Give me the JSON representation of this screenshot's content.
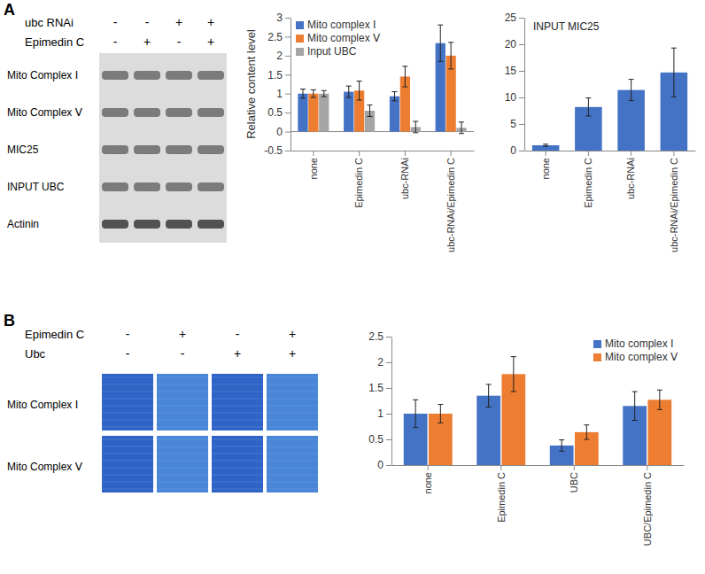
{
  "chart_data": [
    {
      "type": "bar",
      "y_label": "Relative content level",
      "categories": [
        "none",
        "Epimedin C",
        "ubc-RNAi",
        "ubc-RNAi/Epimedin C"
      ],
      "series": [
        {
          "name": "Mito complex Ⅰ",
          "color": "#4472c4",
          "values": [
            1,
            1.05,
            0.93,
            2.33
          ],
          "errors": [
            0.12,
            0.15,
            0.12,
            0.48
          ]
        },
        {
          "name": "Mito complex Ⅴ",
          "color": "#ed7d31",
          "values": [
            1,
            1.08,
            1.45,
            2.0
          ],
          "errors": [
            0.1,
            0.25,
            0.27,
            0.35
          ]
        },
        {
          "name": "Input UBC",
          "color": "#a5a5a5",
          "values": [
            1,
            0.55,
            0.12,
            0.1
          ],
          "errors": [
            0.08,
            0.15,
            0.15,
            0.15
          ]
        }
      ],
      "ylim": [
        -0.5,
        3
      ],
      "yticks": [
        -0.5,
        0,
        0.5,
        1,
        1.5,
        2,
        2.5,
        3
      ],
      "legend": "top-left",
      "grid": false
    },
    {
      "type": "bar",
      "title": "INPUT MIC25",
      "categories": [
        "none",
        "Epimedin C",
        "ubc-RNAi",
        "ubc-RNAi/Epimedin C"
      ],
      "values": [
        1,
        8.2,
        11.4,
        14.7
      ],
      "errors": [
        0.2,
        1.7,
        2.0,
        4.6
      ],
      "color": "#4472c4",
      "ylim": [
        0,
        25
      ],
      "yticks": [
        0,
        5,
        10,
        15,
        20,
        25
      ],
      "grid": false
    },
    {
      "type": "bar",
      "categories": [
        "none",
        "Epimedin C",
        "UBC",
        "UBC/Epimedin C"
      ],
      "series": [
        {
          "name": "Mito complex Ⅰ",
          "color": "#4472c4",
          "values": [
            1,
            1.35,
            0.38,
            1.15
          ],
          "errors": [
            0.27,
            0.22,
            0.11,
            0.28
          ]
        },
        {
          "name": "Mito complex Ⅴ",
          "color": "#ed7d31",
          "values": [
            1,
            1.77,
            0.64,
            1.27
          ],
          "errors": [
            0.18,
            0.34,
            0.14,
            0.19
          ]
        }
      ],
      "ylim": [
        0,
        2.5
      ],
      "yticks": [
        0,
        0.5,
        1,
        1.5,
        2,
        2.5
      ],
      "legend": "top-right",
      "grid": false
    }
  ],
  "blots": [
    {
      "letter": "A",
      "conditions": [
        {
          "label": "ubc RNAi",
          "signs": [
            "-",
            "-",
            "+",
            "+"
          ]
        },
        {
          "label": "Epimedin C",
          "signs": [
            "-",
            "+",
            "-",
            "+"
          ]
        }
      ],
      "rows": [
        "Mito Complex Ⅰ",
        "Mito Complex Ⅴ",
        "MIC25",
        "INPUT UBC",
        "Actinin"
      ]
    },
    {
      "letter": "B",
      "conditions": [
        {
          "label": "Epimedin C",
          "signs": [
            "-",
            "+",
            "-",
            "+"
          ]
        },
        {
          "label": "Ubc",
          "signs": [
            "-",
            "-",
            "+",
            "+"
          ]
        }
      ],
      "rows": [
        "Mito Complex Ⅰ",
        "Mito Complex Ⅴ"
      ]
    }
  ]
}
